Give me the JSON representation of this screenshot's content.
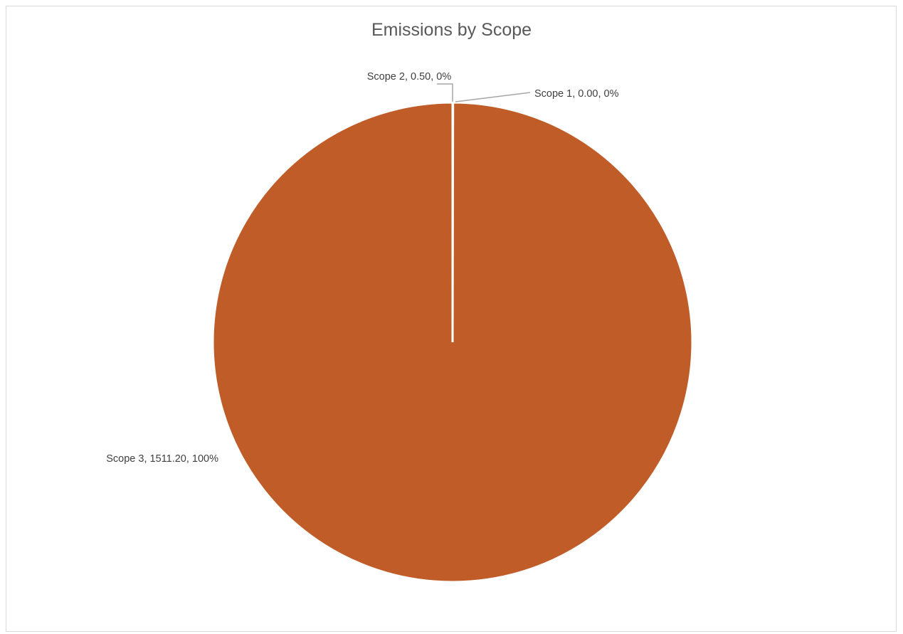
{
  "chart_data": {
    "type": "pie",
    "title": "Emissions by Scope",
    "categories": [
      "Scope 1",
      "Scope 2",
      "Scope 3"
    ],
    "values": [
      0.0,
      0.5,
      1511.2
    ],
    "data_labels": [
      "Scope 1, 0.00, 0%",
      "Scope 2, 0.50, 0%",
      "Scope 3, 1511.20, 100%"
    ],
    "colors": [
      "#4472C4",
      "#A5A5A5",
      "#C05C28"
    ],
    "legend": "none",
    "start_angle": "12 o'clock, clockwise",
    "slice_separator_color": "#ffffff",
    "leader_line_color": "#A6A6A6"
  }
}
